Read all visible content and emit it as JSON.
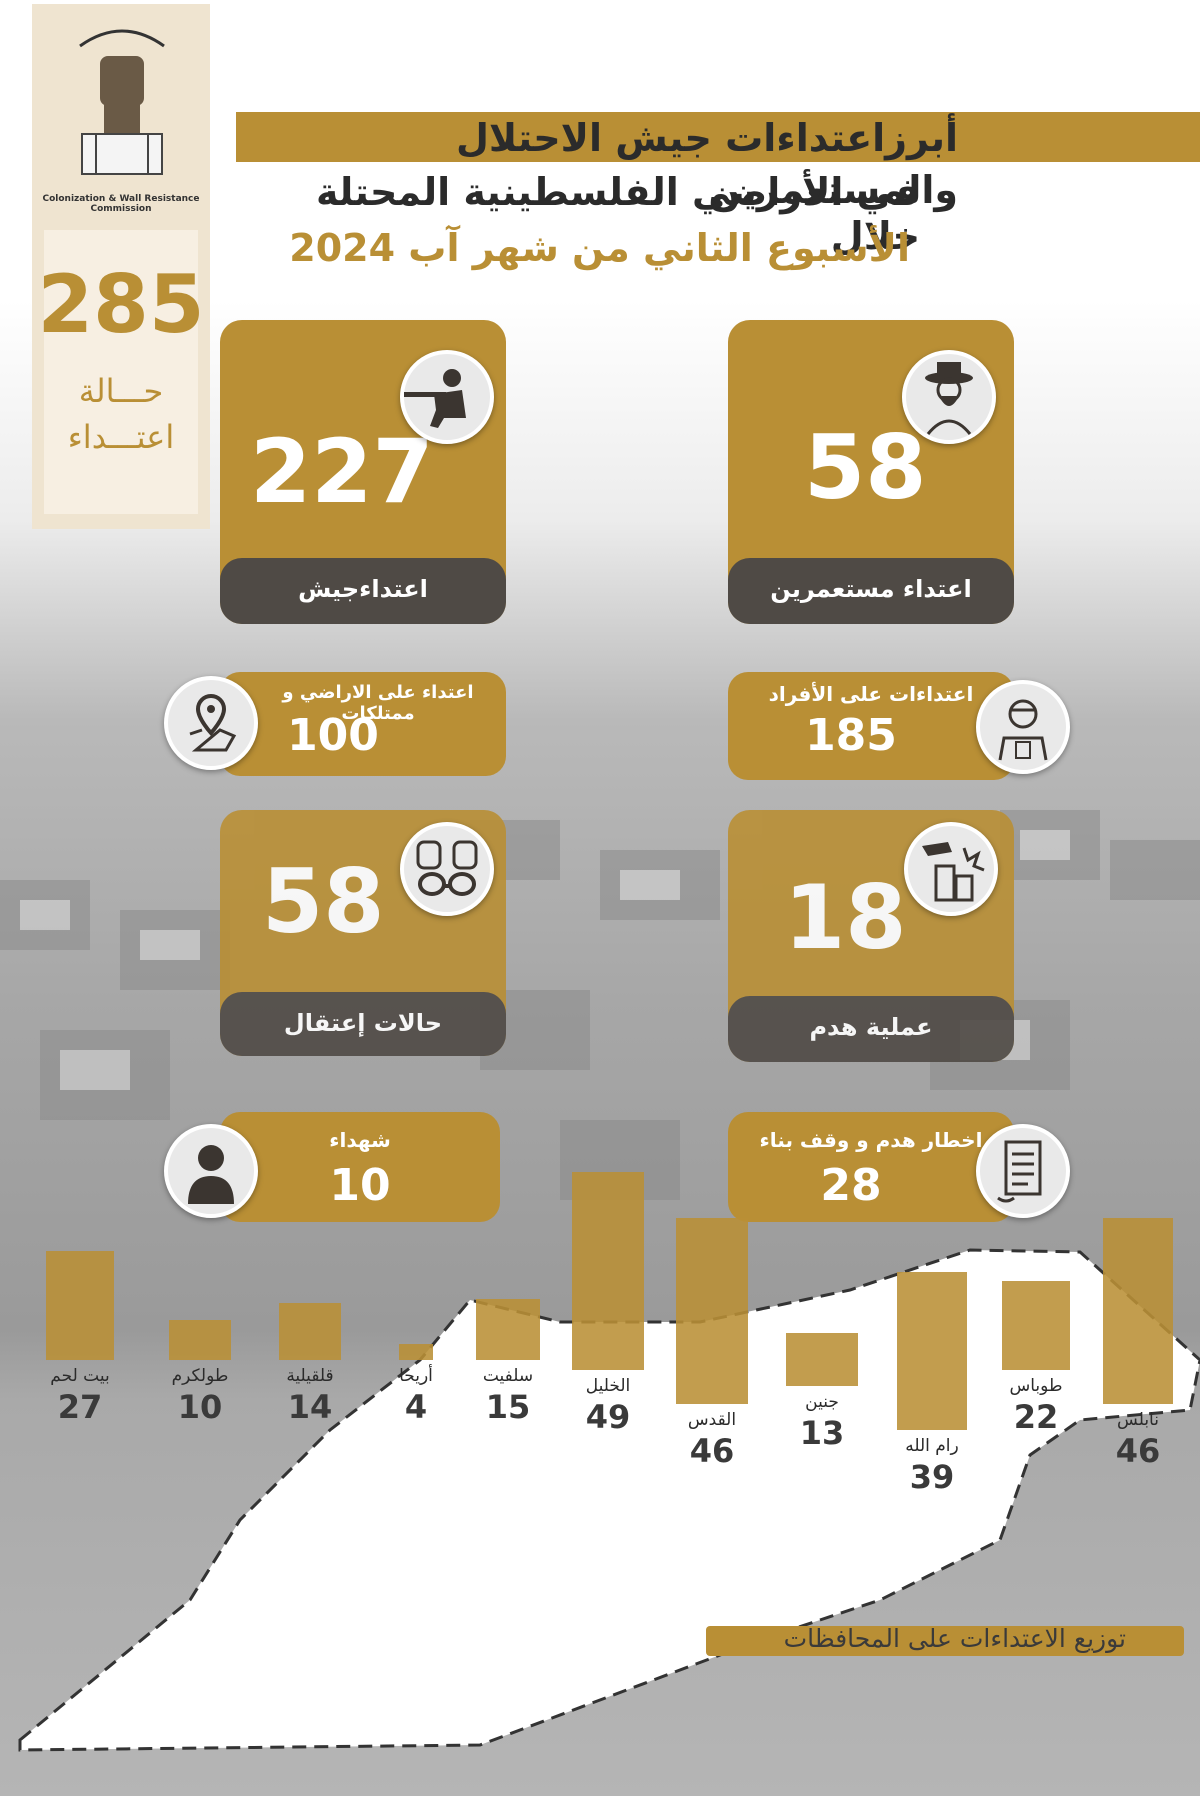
{
  "title": {
    "line1": "أبرزاعتداءات جيش الاحتلال والمستعمرين",
    "line2": "في الأراضي الفلسطينية المحتلة خلال",
    "line3": "الأسبوع الثاني من شهر آب  2024"
  },
  "logo": {
    "caption": "Colonization & Wall Resistance Commission"
  },
  "total": {
    "value": "285",
    "label_1": "حـــالة",
    "label_2": "اعتـــداء"
  },
  "cards": {
    "army": {
      "value": "227",
      "label": "اعتداءجيش",
      "icon": "soldier-icon"
    },
    "settlers": {
      "value": "58",
      "label": "اعتداء مستعمرين",
      "icon": "settler-icon"
    },
    "arrests": {
      "value": "58",
      "label": "حالات إعتقال",
      "icon": "handcuffs-icon"
    },
    "demolitions": {
      "value": "18",
      "label": "عملية  هدم",
      "icon": "demolition-icon"
    }
  },
  "small_cards": {
    "land": {
      "label": "اعتداء على الاراضي و ممتلكات",
      "value": "100",
      "icon": "map-pin-icon"
    },
    "individuals": {
      "label": "اعتداءات على الأفراد",
      "value": "185",
      "icon": "injured-person-icon"
    },
    "martyrs": {
      "label": "شهداء",
      "value": "10",
      "icon": "person-icon"
    },
    "notices": {
      "label": "اخطار  هدم و وقف بناء",
      "value": "28",
      "icon": "document-icon"
    }
  },
  "chart_data": {
    "type": "bar",
    "title": "توزيع الاعتداءات على المحافظات",
    "categories": [
      "بيت لحم",
      "طولكرم",
      "قلقيلية",
      "أريحا",
      "سلفيت",
      "الخليل",
      "القدس",
      "جنين",
      "رام الله",
      "طوباس",
      "نابلس"
    ],
    "values": [
      27,
      10,
      14,
      4,
      15,
      49,
      46,
      13,
      39,
      22,
      46
    ]
  },
  "colors": {
    "gold": "#b98f35",
    "dark": "#4f4a45"
  }
}
